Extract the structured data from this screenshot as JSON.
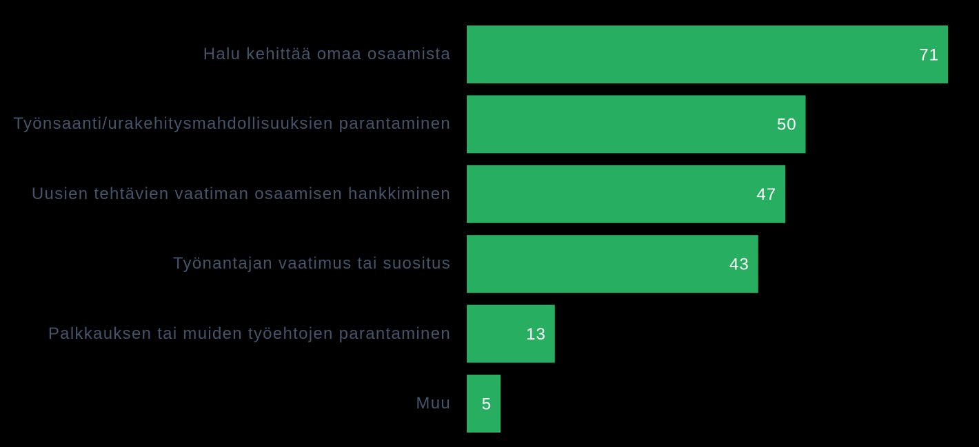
{
  "chart_data": {
    "type": "bar",
    "orientation": "horizontal",
    "categories": [
      "Halu kehittää omaa osaamista",
      "Työnsaanti/urakehitysmahdollisuuksien parantaminen",
      "Uusien tehtävien vaatiman osaamisen hankkiminen",
      "Työnantajan vaatimus tai suositus",
      "Palkkauksen tai muiden työehtojen parantaminen",
      "Muu"
    ],
    "values": [
      71,
      50,
      47,
      43,
      13,
      5
    ],
    "color": "#27ae60"
  }
}
